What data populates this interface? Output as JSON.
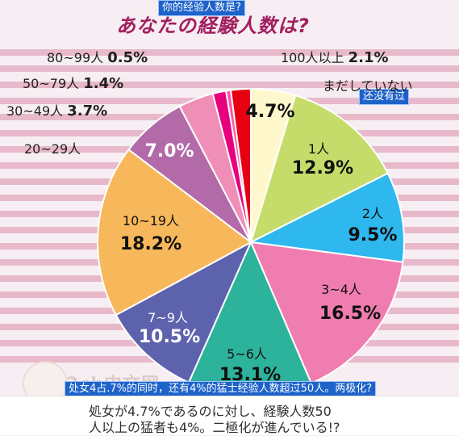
{
  "overlay": {
    "top_caption": "你的经验人数是?",
    "right_tag": "还没有过",
    "bottom_caption": "处女4占.7%的同时，还有4%的猛士经验人数超过50人。两极化?"
  },
  "chart_data": {
    "type": "pie",
    "title": "あなたの経験人数は?",
    "categories": [
      "まだしていない",
      "1人",
      "2人",
      "3~4人",
      "5~6人",
      "7~9人",
      "10~19人",
      "20~29人",
      "30~49人",
      "50~79人",
      "80~99人",
      "100人以上"
    ],
    "values": [
      4.7,
      12.9,
      9.5,
      16.5,
      13.1,
      10.5,
      18.2,
      7.0,
      3.7,
      1.4,
      0.5,
      2.1
    ],
    "colors": [
      "#fff8cc",
      "#c6dc6a",
      "#2eb8ee",
      "#f07db0",
      "#2db39b",
      "#5d62ad",
      "#f7b85b",
      "#b26ba8",
      "#ef8fb8",
      "#e6007e",
      "#ff55ad",
      "#e60012"
    ],
    "labels": [
      {
        "name": "まだしていない",
        "pct": "4.7%"
      },
      {
        "name": "1人",
        "pct": "12.9%"
      },
      {
        "name": "2人",
        "pct": "9.5%"
      },
      {
        "name": "3~4人",
        "pct": "16.5%"
      },
      {
        "name": "5~6人",
        "pct": "13.1%"
      },
      {
        "name": "7~9人",
        "pct": "10.5%"
      },
      {
        "name": "10~19人",
        "pct": "18.2%"
      },
      {
        "name": "20~29人",
        "pct": "7.0%"
      },
      {
        "name": "30~49人",
        "pct": "3.7%"
      },
      {
        "name": "50~79人",
        "pct": "1.4%"
      },
      {
        "name": "80~99人",
        "pct": "0.5%"
      },
      {
        "name": "100人以上",
        "pct": "2.1%"
      }
    ]
  },
  "watermark": "2ch中文网",
  "footer": {
    "line1": "処女が4.7%であるのに対し、経験人数50",
    "line2": "人以上の猛者も4%。二極化が進んでいる!?"
  }
}
